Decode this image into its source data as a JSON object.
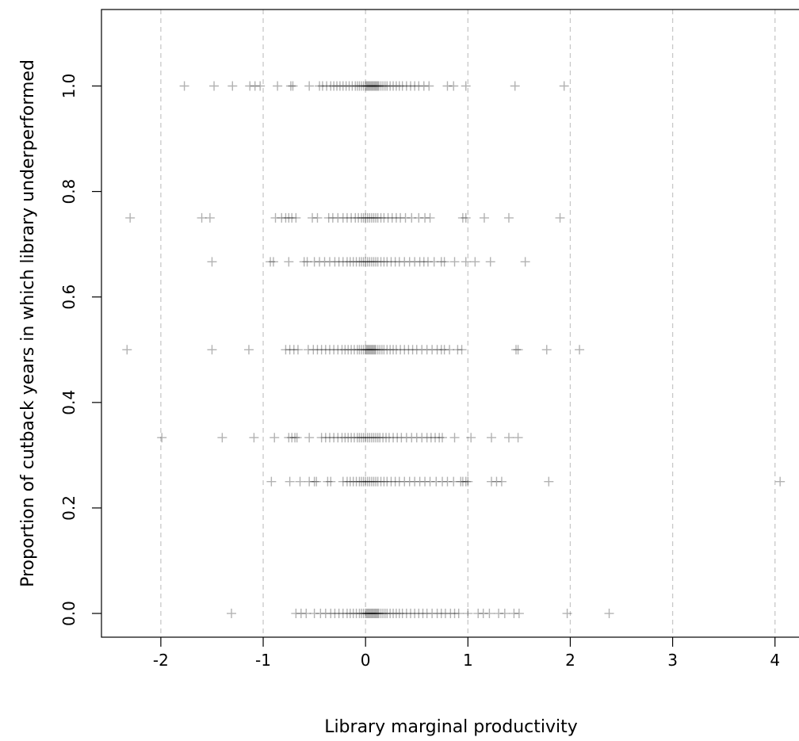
{
  "chart_data": {
    "type": "scatter",
    "title": "",
    "xlabel": "Library marginal productivity",
    "ylabel": "Proportion of cutback years in which library underperformed",
    "xlim": [
      -2.58,
      4.25
    ],
    "ylim": [
      -0.045,
      1.145
    ],
    "x_ticks": [
      -2,
      -1,
      0,
      1,
      2,
      3,
      4
    ],
    "y_ticks": [
      0.0,
      0.2,
      0.4,
      0.6,
      0.8,
      1.0
    ],
    "x_tick_labels": [
      "-2",
      "-1",
      "0",
      "1",
      "2",
      "3",
      "4"
    ],
    "y_tick_labels": [
      "0.0",
      "0.2",
      "0.4",
      "0.6",
      "0.8",
      "1.0"
    ],
    "grid": "vertical dashed",
    "marker": "+",
    "point_color": "#000000",
    "point_opacity": 0.3,
    "grid_color": "#c8c8c8",
    "series": [
      {
        "y": 1.0,
        "x": [
          -1.77,
          -1.48,
          -1.3,
          -1.13,
          -1.08,
          -1.03,
          -0.86,
          -0.73,
          -0.71,
          -0.55,
          -0.45,
          -0.42,
          -0.38,
          -0.34,
          -0.31,
          -0.28,
          -0.25,
          -0.22,
          -0.19,
          -0.16,
          -0.13,
          -0.1,
          -0.08,
          -0.06,
          -0.04,
          -0.02,
          0.0,
          0.01,
          0.02,
          0.03,
          0.04,
          0.05,
          0.06,
          0.07,
          0.08,
          0.09,
          0.1,
          0.11,
          0.12,
          0.13,
          0.15,
          0.17,
          0.19,
          0.21,
          0.24,
          0.27,
          0.3,
          0.33,
          0.36,
          0.4,
          0.44,
          0.48,
          0.52,
          0.57,
          0.62,
          0.8,
          0.86,
          0.98,
          1.46,
          1.94
        ]
      },
      {
        "y": 0.75,
        "x": [
          -2.3,
          -1.6,
          -1.52,
          -0.88,
          -0.82,
          -0.78,
          -0.75,
          -0.72,
          -0.68,
          -0.52,
          -0.47,
          -0.36,
          -0.32,
          -0.27,
          -0.22,
          -0.18,
          -0.14,
          -0.1,
          -0.07,
          -0.04,
          -0.02,
          0.0,
          0.02,
          0.04,
          0.06,
          0.08,
          0.1,
          0.12,
          0.15,
          0.18,
          0.22,
          0.26,
          0.3,
          0.34,
          0.39,
          0.45,
          0.52,
          0.58,
          0.63,
          0.95,
          0.98,
          1.16,
          1.4,
          1.9
        ]
      },
      {
        "y": 0.6667,
        "x": [
          -1.5,
          -0.93,
          -0.9,
          -0.75,
          -0.6,
          -0.57,
          -0.5,
          -0.45,
          -0.4,
          -0.35,
          -0.3,
          -0.26,
          -0.22,
          -0.18,
          -0.15,
          -0.12,
          -0.09,
          -0.06,
          -0.04,
          -0.02,
          0.0,
          0.02,
          0.04,
          0.06,
          0.08,
          0.1,
          0.12,
          0.15,
          0.18,
          0.21,
          0.25,
          0.29,
          0.33,
          0.38,
          0.43,
          0.48,
          0.53,
          0.57,
          0.61,
          0.67,
          0.74,
          0.77,
          0.87,
          0.98,
          1.07,
          1.22,
          1.56
        ]
      },
      {
        "y": 0.5,
        "x": [
          -2.33,
          -1.5,
          -1.14,
          -0.78,
          -0.74,
          -0.7,
          -0.66,
          -0.56,
          -0.51,
          -0.47,
          -0.43,
          -0.39,
          -0.35,
          -0.31,
          -0.27,
          -0.23,
          -0.2,
          -0.17,
          -0.14,
          -0.11,
          -0.08,
          -0.06,
          -0.04,
          -0.02,
          0.0,
          0.01,
          0.02,
          0.03,
          0.04,
          0.05,
          0.06,
          0.07,
          0.08,
          0.09,
          0.1,
          0.12,
          0.14,
          0.16,
          0.18,
          0.21,
          0.24,
          0.27,
          0.3,
          0.34,
          0.38,
          0.42,
          0.46,
          0.5,
          0.55,
          0.6,
          0.65,
          0.7,
          0.74,
          0.77,
          0.82,
          0.9,
          0.94,
          1.47,
          1.49,
          1.77,
          2.09
        ]
      },
      {
        "y": 0.3333,
        "x": [
          -1.99,
          -1.4,
          -1.09,
          -0.89,
          -0.75,
          -0.72,
          -0.69,
          -0.67,
          -0.55,
          -0.43,
          -0.39,
          -0.35,
          -0.31,
          -0.27,
          -0.23,
          -0.2,
          -0.17,
          -0.14,
          -0.11,
          -0.08,
          -0.06,
          -0.04,
          -0.02,
          0.0,
          0.02,
          0.04,
          0.06,
          0.08,
          0.1,
          0.12,
          0.14,
          0.17,
          0.2,
          0.23,
          0.27,
          0.31,
          0.35,
          0.4,
          0.45,
          0.5,
          0.55,
          0.6,
          0.64,
          0.68,
          0.72,
          0.75,
          0.87,
          1.03,
          1.23,
          1.4,
          1.49
        ]
      },
      {
        "y": 0.25,
        "x": [
          -0.92,
          -0.74,
          -0.64,
          -0.55,
          -0.5,
          -0.48,
          -0.37,
          -0.34,
          -0.22,
          -0.18,
          -0.15,
          -0.12,
          -0.09,
          -0.06,
          -0.04,
          -0.02,
          0.0,
          0.02,
          0.04,
          0.06,
          0.08,
          0.1,
          0.12,
          0.15,
          0.18,
          0.21,
          0.25,
          0.29,
          0.33,
          0.38,
          0.43,
          0.48,
          0.53,
          0.58,
          0.63,
          0.69,
          0.75,
          0.8,
          0.86,
          0.93,
          0.95,
          0.98,
          1.0,
          1.23,
          1.28,
          1.33,
          1.79,
          4.05
        ]
      },
      {
        "y": 0.0,
        "x": [
          -1.31,
          -0.68,
          -0.63,
          -0.58,
          -0.5,
          -0.44,
          -0.39,
          -0.34,
          -0.3,
          -0.26,
          -0.22,
          -0.18,
          -0.15,
          -0.12,
          -0.09,
          -0.06,
          -0.04,
          -0.02,
          0.0,
          0.01,
          0.02,
          0.03,
          0.04,
          0.05,
          0.06,
          0.07,
          0.08,
          0.09,
          0.1,
          0.11,
          0.12,
          0.13,
          0.15,
          0.17,
          0.19,
          0.21,
          0.24,
          0.27,
          0.3,
          0.33,
          0.36,
          0.4,
          0.44,
          0.48,
          0.52,
          0.56,
          0.6,
          0.65,
          0.7,
          0.74,
          0.78,
          0.83,
          0.87,
          0.91,
          1.0,
          1.1,
          1.15,
          1.21,
          1.3,
          1.36,
          1.45,
          1.5,
          1.97,
          2.38
        ]
      }
    ]
  }
}
